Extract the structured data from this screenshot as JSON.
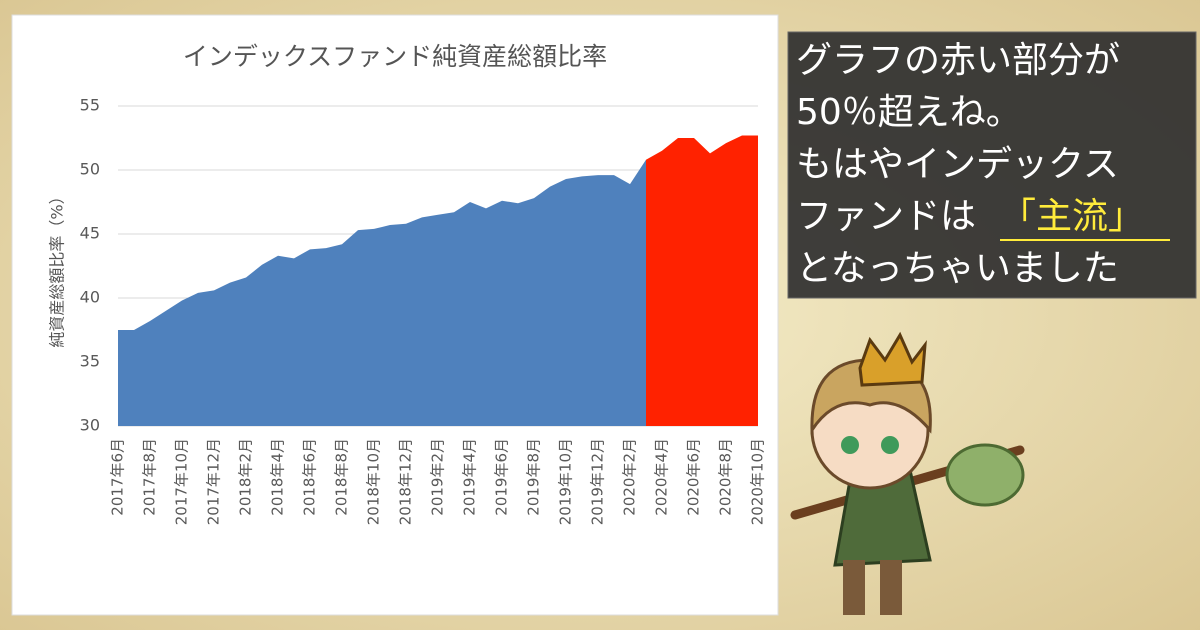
{
  "chart_data": {
    "type": "area",
    "title": "インデックスファンド純資産総額比率",
    "y_label": "純資産総額比率（%）",
    "categories": [
      "2017年6月",
      null,
      "2017年8月",
      null,
      "2017年10月",
      null,
      "2017年12月",
      null,
      "2018年2月",
      null,
      "2018年4月",
      null,
      "2018年6月",
      null,
      "2018年8月",
      null,
      "2018年10月",
      null,
      "2018年12月",
      null,
      "2019年2月",
      null,
      "2019年4月",
      null,
      "2019年6月",
      null,
      "2019年8月",
      null,
      "2019年10月",
      null,
      "2019年12月",
      null,
      "2020年2月",
      null,
      "2020年4月",
      null,
      "2020年6月",
      null,
      "2020年8月",
      null,
      "2020年10月"
    ],
    "series": [
      {
        "color": "#4f81bd",
        "values": [
          37.5,
          37.5,
          38.2,
          39.0,
          39.8,
          40.4,
          40.6,
          41.2,
          41.6,
          42.6,
          43.3,
          43.1,
          43.8,
          43.9,
          44.2,
          45.3,
          45.4,
          45.7,
          45.8,
          46.3,
          46.5,
          46.7,
          47.5,
          47.0,
          47.6,
          47.4,
          47.8,
          48.7,
          49.3,
          49.5,
          49.6,
          49.6,
          48.9,
          50.8,
          null,
          null,
          null,
          null,
          null,
          null,
          null
        ]
      },
      {
        "color": "#ff2200",
        "values": [
          null,
          null,
          null,
          null,
          null,
          null,
          null,
          null,
          null,
          null,
          null,
          null,
          null,
          null,
          null,
          null,
          null,
          null,
          null,
          null,
          null,
          null,
          null,
          null,
          null,
          null,
          null,
          null,
          null,
          null,
          null,
          null,
          null,
          50.8,
          51.5,
          52.5,
          52.5,
          51.3,
          52.1,
          52.7,
          52.7
        ]
      }
    ],
    "ylim": [
      30,
      55
    ],
    "yticks": [
      30,
      35,
      40,
      45,
      50,
      55
    ],
    "grid": true
  },
  "callout": {
    "lines": [
      "グラフの赤い部分が",
      "50％超えね。",
      "もはやインデックス",
      "ファンドは"
    ],
    "highlight": "「主流」",
    "last": "となっちゃいました"
  }
}
